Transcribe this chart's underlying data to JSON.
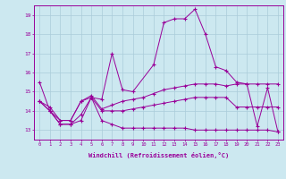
{
  "xlabel": "Windchill (Refroidissement éolien,°C)",
  "background_color": "#cce8f0",
  "grid_color": "#aaccda",
  "line_color": "#990099",
  "xlim": [
    -0.5,
    23.5
  ],
  "ylim": [
    12.5,
    19.5
  ],
  "yticks": [
    13,
    14,
    15,
    16,
    17,
    18,
    19
  ],
  "x_ticks": [
    0,
    1,
    2,
    3,
    4,
    5,
    6,
    7,
    8,
    9,
    10,
    11,
    12,
    13,
    14,
    15,
    16,
    17,
    18,
    19,
    20,
    21,
    22,
    23
  ],
  "series1": [
    15.5,
    14.0,
    13.3,
    13.3,
    13.8,
    14.7,
    14.6,
    17.0,
    15.1,
    15.0,
    null,
    16.4,
    18.6,
    18.8,
    18.8,
    19.3,
    18.0,
    16.3,
    16.1,
    15.5,
    15.4,
    13.2,
    15.2,
    12.9
  ],
  "series2": [
    14.5,
    14.0,
    13.3,
    13.3,
    13.5,
    14.7,
    13.5,
    13.3,
    13.1,
    13.1,
    13.1,
    13.1,
    13.1,
    13.1,
    13.1,
    13.0,
    13.0,
    13.0,
    13.0,
    13.0,
    13.0,
    13.0,
    13.0,
    12.9
  ],
  "series3": [
    14.5,
    14.0,
    13.5,
    13.5,
    14.5,
    14.7,
    14.0,
    14.0,
    14.0,
    14.1,
    14.2,
    14.3,
    14.4,
    14.5,
    14.6,
    14.7,
    14.7,
    14.7,
    14.7,
    14.2,
    14.2,
    14.2,
    14.2,
    14.2
  ],
  "series4": [
    14.5,
    14.2,
    13.5,
    13.5,
    14.5,
    14.8,
    14.1,
    14.3,
    14.5,
    14.6,
    14.7,
    14.9,
    15.1,
    15.2,
    15.3,
    15.4,
    15.4,
    15.4,
    15.3,
    15.4,
    15.4,
    15.4,
    15.4,
    15.4
  ]
}
